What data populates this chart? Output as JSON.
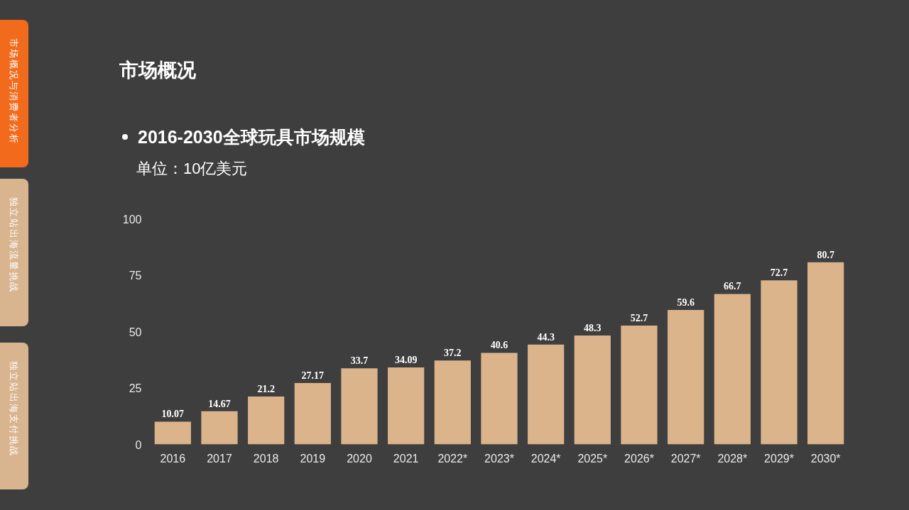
{
  "chart_data": {
    "type": "bar",
    "title": "市场概况",
    "subtitle": "2016-2030全球玩具市场规模",
    "ylabel": "单位：10亿美元",
    "categories": [
      "2016",
      "2017",
      "2018",
      "2019",
      "2020",
      "2021",
      "2022*",
      "2023*",
      "2024*",
      "2025*",
      "2026*",
      "2027*",
      "2028*",
      "2029*",
      "2030*"
    ],
    "values": [
      10.07,
      14.67,
      21.2,
      27.17,
      33.7,
      34.09,
      37.2,
      40.6,
      44.3,
      48.3,
      52.7,
      59.6,
      66.7,
      72.7,
      80.7
    ],
    "color": "#dcb48c",
    "ylim": [
      0,
      100
    ],
    "yticks": [
      0,
      25,
      50,
      75,
      100
    ],
    "grid": false,
    "data_labels": true,
    "annotations": [
      "市场概况与消费者分析",
      "独立站出海流量挑战",
      "独立站出海支付挑战"
    ]
  }
}
